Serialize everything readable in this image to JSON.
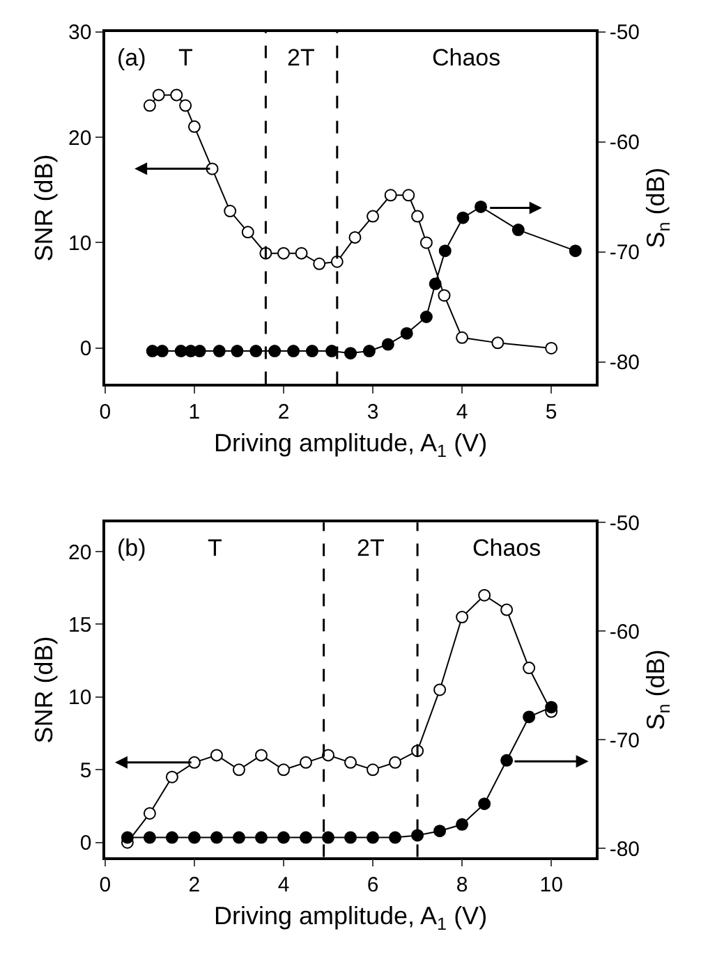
{
  "chart_data": [
    {
      "type": "line",
      "xlabel": "Driving amplitude, A$_{1}$ (V)",
      "ylabel": "SNR (dB)",
      "y2label": "S$_{n}$ (dB)",
      "annotations": [
        "(a)",
        "T",
        "2T",
        "Chaos"
      ],
      "xlim": [
        0,
        5.5
      ],
      "xticks": [
        0,
        1,
        2,
        3,
        4,
        5
      ],
      "ylim": [
        -3.4,
        30
      ],
      "yticks": [
        0,
        10,
        20,
        30
      ],
      "y2lim": [
        -82,
        -50
      ],
      "y2ticks": [
        -50,
        -60,
        -70,
        -80
      ],
      "marker": "circle",
      "line_style": "solid",
      "ref_lines": [
        {
          "axis": "x",
          "value": 1.8,
          "line_style": "dashed"
        },
        {
          "axis": "x",
          "value": 2.6,
          "line_style": "dashed"
        }
      ],
      "series": [
        {
          "color": "#ffffff",
          "x": [
            0.5,
            0.6,
            0.8,
            0.9,
            1.0,
            1.2,
            1.4,
            1.6,
            1.8,
            2.0,
            2.2,
            2.4,
            2.6,
            2.8,
            3.0,
            3.2,
            3.4,
            3.5,
            3.6,
            3.8,
            4.0,
            4.4,
            5.0
          ],
          "values": [
            23,
            24,
            24,
            23,
            21,
            17,
            13,
            11,
            9,
            9,
            9,
            8,
            8.2,
            10.5,
            12.5,
            14.5,
            14.5,
            12.5,
            10,
            5,
            1,
            0.5,
            0
          ]
        },
        {
          "color": "#000000",
          "axis": "y2",
          "x": [
            0.53,
            0.64,
            0.85,
            0.96,
            1.06,
            1.28,
            1.48,
            1.69,
            1.9,
            2.11,
            2.32,
            2.54,
            2.75,
            2.96,
            3.17,
            3.38,
            3.6,
            3.7,
            3.81,
            4.01,
            4.21,
            4.63,
            5.27
          ],
          "values": [
            -79,
            -79,
            -79,
            -79,
            -79,
            -79,
            -79,
            -79,
            -79,
            -79,
            -79,
            -79,
            -79.2,
            -79,
            -78.4,
            -77.4,
            -75.9,
            -72.9,
            -69.9,
            -66.9,
            -65.9,
            -68,
            -69.9
          ]
        }
      ]
    },
    {
      "type": "line",
      "xlabel": "Driving amplitude, A$_{1}$ (V)",
      "ylabel": "SNR (dB)",
      "y2label": "S$_{n}$ (dB)",
      "annotations": [
        "(b)",
        "T",
        "2T",
        "Chaos"
      ],
      "xlim": [
        0,
        11
      ],
      "xticks": [
        0,
        2,
        4,
        6,
        8,
        10
      ],
      "ylim": [
        -1,
        22
      ],
      "yticks": [
        0,
        5,
        10,
        15,
        20
      ],
      "y2lim": [
        -80.8,
        -50
      ],
      "y2ticks": [
        -50,
        -60,
        -70,
        -80
      ],
      "marker": "circle",
      "line_style": "solid",
      "ref_lines": [
        {
          "axis": "x",
          "value": 4.9,
          "line_style": "dashed"
        },
        {
          "axis": "x",
          "value": 7.0,
          "line_style": "dashed"
        }
      ],
      "series": [
        {
          "color": "#ffffff",
          "x": [
            0.5,
            1.0,
            1.5,
            2.0,
            2.5,
            3.0,
            3.5,
            4.0,
            4.5,
            5.0,
            5.5,
            6.0,
            6.5,
            7.0,
            7.5,
            8.0,
            8.5,
            9.0,
            9.5,
            10.0
          ],
          "values": [
            0,
            2,
            4.5,
            5.5,
            6,
            5,
            6,
            5,
            5.5,
            6,
            5.5,
            5,
            5.5,
            6.3,
            10.5,
            15.5,
            17,
            16,
            12,
            9
          ]
        },
        {
          "color": "#000000",
          "axis": "y2",
          "x": [
            0.5,
            1.0,
            1.5,
            2.0,
            2.5,
            3.0,
            3.5,
            4.0,
            4.5,
            5.0,
            5.5,
            6.0,
            6.5,
            7.0,
            7.5,
            8.0,
            8.5,
            9.0,
            9.5,
            10.0
          ],
          "values": [
            -79,
            -79,
            -79,
            -79,
            -79,
            -79,
            -79,
            -79,
            -79,
            -79,
            -79,
            -79,
            -79,
            -78.8,
            -78.4,
            -77.8,
            -75.9,
            -71.9,
            -67.9,
            -67.0
          ]
        }
      ]
    }
  ]
}
